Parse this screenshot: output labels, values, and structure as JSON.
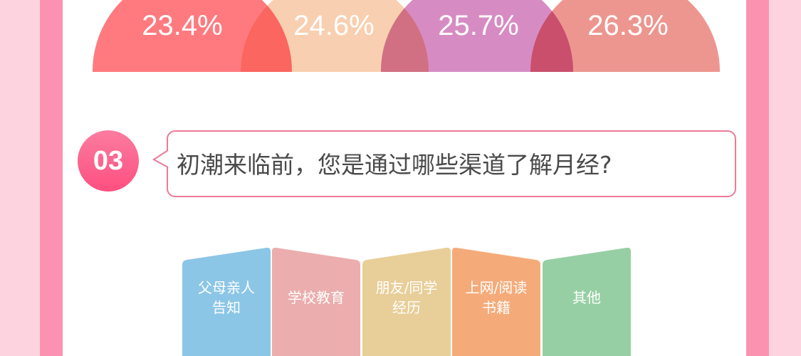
{
  "percentages": [
    {
      "label": "23.4%",
      "color": "#fe7a7f"
    },
    {
      "label": "24.6%",
      "color": "#f8cfb0"
    },
    {
      "label": "25.7%",
      "color": "#d68cc3"
    },
    {
      "label": "26.3%",
      "color": "#ed9690"
    }
  ],
  "question": {
    "number": "03",
    "text": "初潮来临前，您是通过哪些渠道了解月经?"
  },
  "options": [
    {
      "line1": "父母亲人",
      "line2": "告知",
      "color": "#8cc6e6"
    },
    {
      "line1": "学校教育",
      "line2": "",
      "color": "#ebadad"
    },
    {
      "line1": "朋友/同学",
      "line2": "经历",
      "color": "#e8ce98"
    },
    {
      "line1": "上网/阅读",
      "line2": "书籍",
      "color": "#f5ab79"
    },
    {
      "line1": "其他",
      "line2": "",
      "color": "#97cfa4"
    }
  ]
}
